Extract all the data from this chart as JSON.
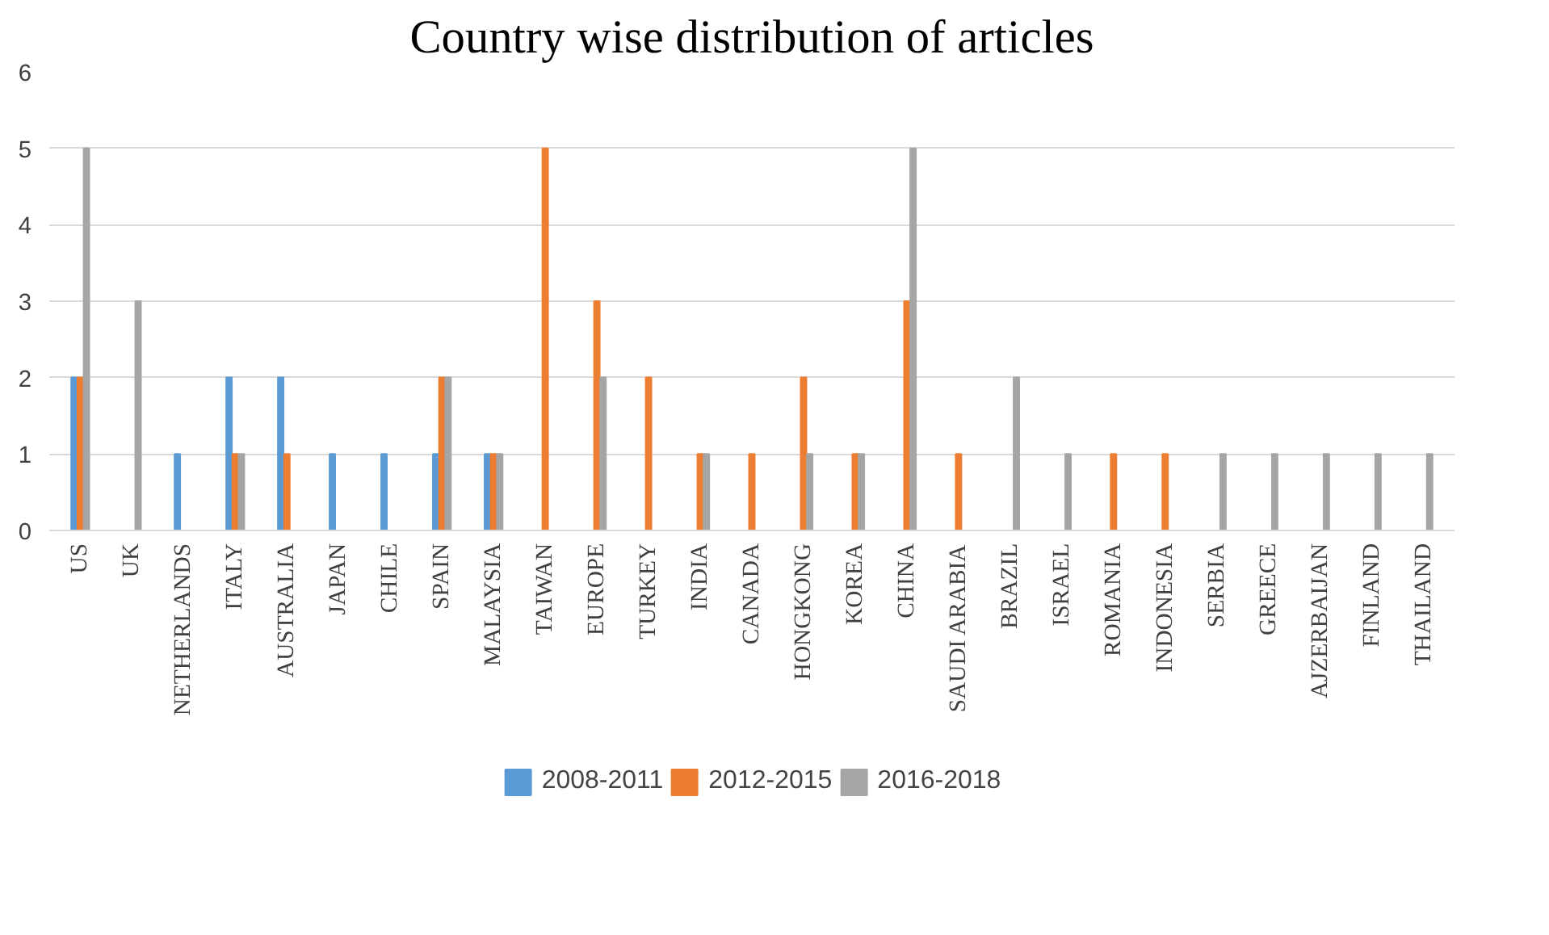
{
  "chart_data": {
    "type": "bar",
    "title": "Country wise distribution of articles",
    "categories": [
      "US",
      "UK",
      "NETHERLANDS",
      "ITALY",
      "AUSTRALIA",
      "JAPAN",
      "CHILE",
      "SPAIN",
      "MALAYSIA",
      "TAIWAN",
      "EUROPE",
      "TURKEY",
      "INDIA",
      "CANADA",
      "HONGKONG",
      "KOREA",
      "CHINA",
      "SAUDI ARABIA",
      "BRAZIL",
      "ISRAEL",
      "ROMANIA",
      "INDONESIA",
      "SERBIA",
      "GREECE",
      "AJZERBAIJAN",
      "FINLAND",
      "THAILAND"
    ],
    "series": [
      {
        "name": "2008-2011",
        "color": "#5b9bd5",
        "values": [
          2,
          0,
          1,
          2,
          2,
          1,
          1,
          1,
          1,
          0,
          0,
          0,
          0,
          0,
          0,
          0,
          0,
          0,
          0,
          0,
          0,
          0,
          0,
          0,
          0,
          0,
          0
        ]
      },
      {
        "name": "2012-2015",
        "color": "#ed7d31",
        "values": [
          2,
          0,
          0,
          1,
          1,
          0,
          0,
          2,
          1,
          5,
          3,
          2,
          1,
          1,
          2,
          1,
          3,
          1,
          0,
          0,
          1,
          1,
          0,
          0,
          0,
          0,
          0
        ]
      },
      {
        "name": "2016-2018",
        "color": "#a5a5a5",
        "values": [
          5,
          3,
          0,
          1,
          0,
          0,
          0,
          2,
          1,
          0,
          2,
          0,
          1,
          0,
          1,
          1,
          5,
          0,
          2,
          1,
          0,
          0,
          1,
          1,
          1,
          1,
          1
        ]
      }
    ],
    "ylim": [
      0,
      6
    ],
    "yticks": [
      0,
      1,
      2,
      3,
      4,
      5,
      6
    ],
    "grid": "y",
    "legend": "bottom"
  }
}
